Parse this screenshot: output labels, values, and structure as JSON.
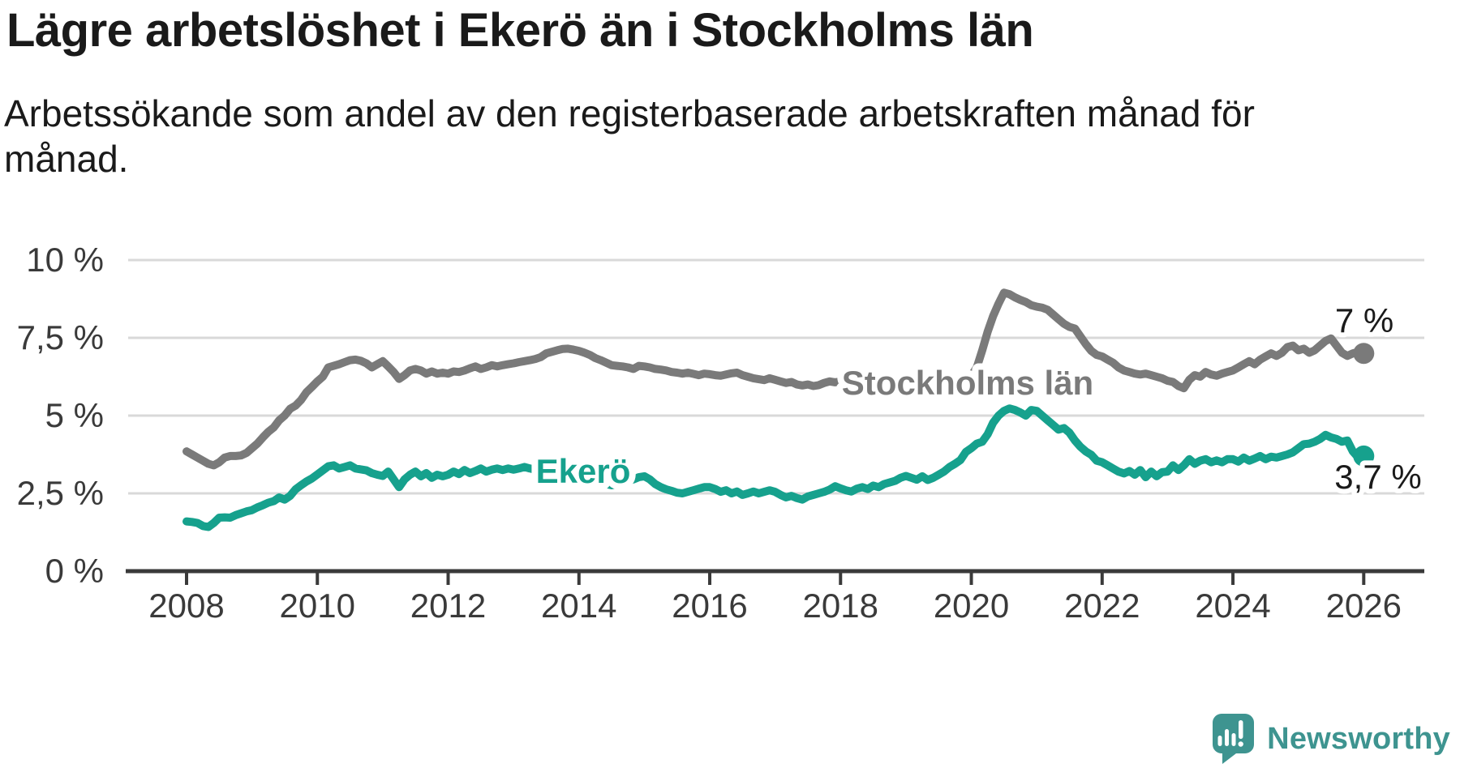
{
  "header": {
    "title": "Lägre arbetslöshet i Ekerö än i Stockholms län",
    "subtitle": "Arbetssökande som andel av den registerbaserade arbetskraften månad för månad."
  },
  "chart_data": {
    "type": "line",
    "title": "Lägre arbetslöshet i Ekerö än i Stockholms län",
    "subtitle": "Arbetssökande som andel av den registerbaserade arbetskraften månad för månad.",
    "unit": "%",
    "grid": "horizontal",
    "legend_position": "inline-labels",
    "x_start_year": 2008,
    "x_interval_months": 1,
    "xlim": [
      2008,
      2026
    ],
    "ylim": [
      0,
      10
    ],
    "x_ticks": [
      "2008",
      "2010",
      "2012",
      "2014",
      "2016",
      "2018",
      "2020",
      "2022",
      "2024",
      "2026"
    ],
    "y_ticks": [
      {
        "label": "0 %",
        "value": 0
      },
      {
        "label": "2,5 %",
        "value": 2.5
      },
      {
        "label": "5 %",
        "value": 5
      },
      {
        "label": "7,5 %",
        "value": 7.5
      },
      {
        "label": "10 %",
        "value": 10
      }
    ],
    "series": [
      {
        "name": "Stockholms län",
        "color": "#7a7a7a",
        "end_label": "7 %",
        "end_value": 7.0,
        "values": [
          3.85,
          3.75,
          3.65,
          3.55,
          3.45,
          3.4,
          3.5,
          3.65,
          3.7,
          3.7,
          3.72,
          3.8,
          3.95,
          4.1,
          4.3,
          4.48,
          4.62,
          4.85,
          5.0,
          5.22,
          5.32,
          5.5,
          5.75,
          5.92,
          6.1,
          6.25,
          6.55,
          6.6,
          6.65,
          6.72,
          6.78,
          6.8,
          6.76,
          6.68,
          6.55,
          6.65,
          6.75,
          6.58,
          6.4,
          6.18,
          6.3,
          6.45,
          6.5,
          6.45,
          6.35,
          6.42,
          6.35,
          6.38,
          6.35,
          6.42,
          6.4,
          6.45,
          6.52,
          6.58,
          6.5,
          6.55,
          6.62,
          6.58,
          6.62,
          6.65,
          6.68,
          6.72,
          6.75,
          6.78,
          6.82,
          6.88,
          7.0,
          7.05,
          7.1,
          7.14,
          7.15,
          7.12,
          7.08,
          7.02,
          6.95,
          6.85,
          6.78,
          6.7,
          6.62,
          6.6,
          6.58,
          6.55,
          6.5,
          6.6,
          6.58,
          6.55,
          6.5,
          6.48,
          6.45,
          6.4,
          6.38,
          6.35,
          6.38,
          6.34,
          6.3,
          6.35,
          6.33,
          6.3,
          6.28,
          6.32,
          6.36,
          6.38,
          6.3,
          6.25,
          6.2,
          6.17,
          6.14,
          6.2,
          6.15,
          6.1,
          6.05,
          6.08,
          6.0,
          5.97,
          6.0,
          5.95,
          5.98,
          6.05,
          6.1,
          6.07,
          6.1,
          6.12,
          6.08,
          6.1,
          6.13,
          6.15,
          6.1,
          6.08,
          6.12,
          6.15,
          6.12,
          6.14,
          6.15,
          6.17,
          6.14,
          6.12,
          6.15,
          6.18,
          6.16,
          6.14,
          6.17,
          6.2,
          6.16,
          6.2,
          6.28,
          6.55,
          7.1,
          7.7,
          8.2,
          8.6,
          8.95,
          8.9,
          8.8,
          8.72,
          8.65,
          8.55,
          8.5,
          8.47,
          8.4,
          8.25,
          8.1,
          7.95,
          7.85,
          7.8,
          7.55,
          7.3,
          7.08,
          6.95,
          6.9,
          6.8,
          6.7,
          6.55,
          6.45,
          6.4,
          6.35,
          6.32,
          6.35,
          6.3,
          6.25,
          6.2,
          6.12,
          6.08,
          5.95,
          5.88,
          6.15,
          6.3,
          6.25,
          6.4,
          6.32,
          6.28,
          6.35,
          6.4,
          6.45,
          6.55,
          6.65,
          6.75,
          6.65,
          6.8,
          6.9,
          7.0,
          6.92,
          7.02,
          7.2,
          7.25,
          7.1,
          7.15,
          7.02,
          7.1,
          7.25,
          7.4,
          7.48,
          7.25,
          7.02,
          6.92,
          7.0,
          7.05,
          7.0
        ]
      },
      {
        "name": "Ekerö",
        "color": "#16a18d",
        "end_label": "3,7 %",
        "end_value": 3.7,
        "values": [
          1.6,
          1.58,
          1.55,
          1.45,
          1.42,
          1.55,
          1.72,
          1.73,
          1.72,
          1.8,
          1.86,
          1.92,
          1.96,
          2.05,
          2.12,
          2.2,
          2.25,
          2.37,
          2.3,
          2.42,
          2.63,
          2.76,
          2.88,
          2.98,
          3.11,
          3.24,
          3.37,
          3.4,
          3.3,
          3.35,
          3.4,
          3.3,
          3.27,
          3.24,
          3.15,
          3.1,
          3.06,
          3.2,
          2.95,
          2.7,
          2.95,
          3.1,
          3.2,
          3.05,
          3.15,
          3.0,
          3.1,
          3.05,
          3.1,
          3.2,
          3.12,
          3.25,
          3.15,
          3.22,
          3.3,
          3.2,
          3.26,
          3.3,
          3.25,
          3.3,
          3.26,
          3.3,
          3.35,
          3.3,
          3.26,
          3.3,
          3.32,
          3.28,
          3.25,
          3.2,
          3.15,
          3.1,
          3.05,
          3.0,
          2.95,
          2.9,
          2.85,
          2.8,
          2.76,
          2.8,
          2.85,
          2.9,
          2.95,
          3.02,
          3.05,
          2.95,
          2.8,
          2.7,
          2.63,
          2.58,
          2.52,
          2.5,
          2.55,
          2.6,
          2.65,
          2.7,
          2.7,
          2.64,
          2.55,
          2.6,
          2.5,
          2.56,
          2.45,
          2.5,
          2.56,
          2.5,
          2.55,
          2.6,
          2.55,
          2.45,
          2.37,
          2.42,
          2.35,
          2.3,
          2.4,
          2.45,
          2.5,
          2.55,
          2.62,
          2.73,
          2.66,
          2.6,
          2.56,
          2.65,
          2.7,
          2.64,
          2.75,
          2.7,
          2.8,
          2.85,
          2.9,
          3.0,
          3.06,
          3.0,
          2.94,
          3.05,
          2.93,
          3.0,
          3.1,
          3.2,
          3.35,
          3.45,
          3.57,
          3.83,
          3.95,
          4.1,
          4.16,
          4.4,
          4.77,
          5.0,
          5.15,
          5.23,
          5.18,
          5.1,
          5.0,
          5.18,
          5.15,
          5.0,
          4.85,
          4.7,
          4.55,
          4.6,
          4.45,
          4.2,
          4.0,
          3.85,
          3.74,
          3.55,
          3.5,
          3.4,
          3.3,
          3.2,
          3.14,
          3.22,
          3.1,
          3.25,
          3.02,
          3.2,
          3.05,
          3.18,
          3.2,
          3.4,
          3.25,
          3.4,
          3.6,
          3.45,
          3.55,
          3.6,
          3.5,
          3.56,
          3.5,
          3.6,
          3.6,
          3.52,
          3.65,
          3.55,
          3.62,
          3.7,
          3.6,
          3.68,
          3.65,
          3.7,
          3.75,
          3.82,
          3.95,
          4.08,
          4.1,
          4.16,
          4.25,
          4.38,
          4.3,
          4.25,
          4.16,
          4.2,
          3.85,
          3.65,
          3.7
        ]
      }
    ]
  },
  "colors": {
    "background": "#ffffff",
    "title_text": "#1a1a1a",
    "axis_text": "#3a3a3a",
    "axis_line": "#3a3a3a",
    "gridline": "#d9d9d9",
    "series_stockholm": "#7a7a7a",
    "series_ekero": "#16a18d",
    "brand": "#3e9490"
  },
  "footer": {
    "brand": "Newsworthy"
  },
  "icons": {
    "logo": "newsworthy-speech-bubble-chart-icon"
  }
}
